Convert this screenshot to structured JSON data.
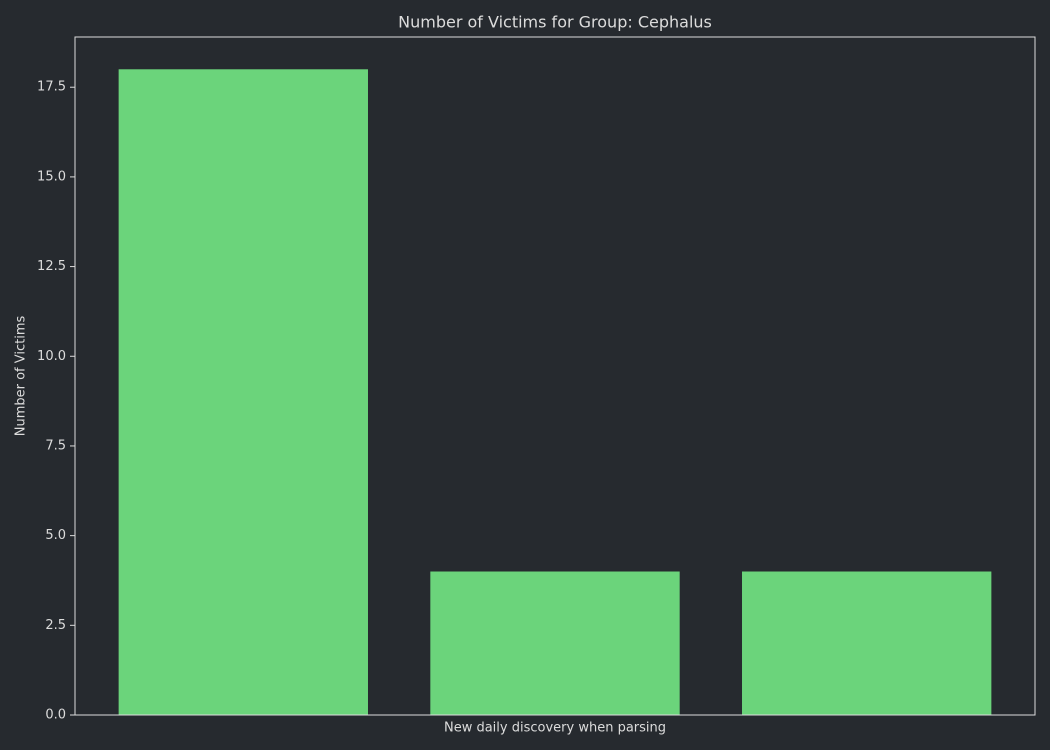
{
  "chart_data": {
    "type": "bar",
    "title": "Number of Victims for Group: Cephalus",
    "xlabel": "New daily discovery when parsing",
    "ylabel": "Number of Victims",
    "categories": [
      null,
      null,
      null
    ],
    "values": [
      18,
      4,
      4
    ],
    "color": "#6bd47b",
    "ylim": [
      0,
      18.9
    ],
    "yticks": [
      {
        "value": 0,
        "label": "0.0"
      },
      2.5,
      {
        "value": 5,
        "label": "5.0"
      },
      7.5,
      {
        "value": 10,
        "label": "10.0"
      },
      12.5,
      {
        "value": 15,
        "label": "15.0"
      },
      17.5
    ],
    "grid": false
  }
}
